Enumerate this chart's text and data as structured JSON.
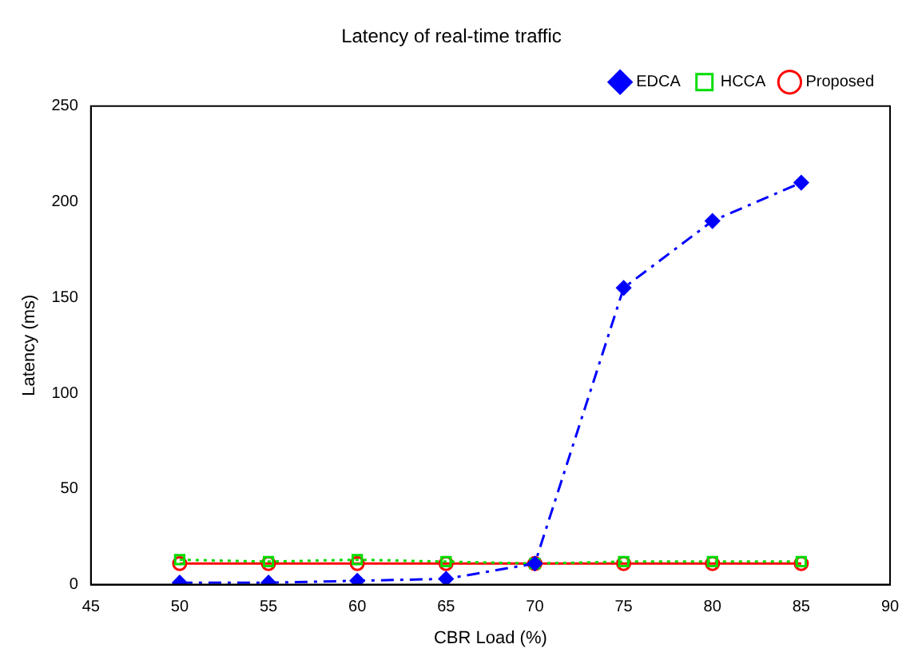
{
  "chart_data": {
    "type": "line",
    "title": "Latency of real-time traffic",
    "xlabel": "CBR Load (%)",
    "ylabel": "Latency (ms)",
    "x": [
      50,
      55,
      60,
      65,
      70,
      75,
      80,
      85
    ],
    "series": [
      {
        "name": "Proposed",
        "color": "#ff0000",
        "values": [
          11,
          11,
          11,
          11,
          11,
          11,
          11,
          11
        ],
        "marker": "circle",
        "line_style": "solid"
      },
      {
        "name": "HCCA",
        "color": "#00dd00",
        "values": [
          13,
          12,
          13,
          12,
          11,
          12,
          12,
          12
        ],
        "marker": "square",
        "line_style": "dotted"
      },
      {
        "name": "EDCA",
        "color": "#0000ff",
        "values": [
          1,
          1,
          2,
          3,
          11,
          155,
          190,
          210
        ],
        "marker": "diamond",
        "line_style": "dashed"
      }
    ],
    "xlim": [
      45,
      90
    ],
    "xticks": [
      45,
      50,
      55,
      60,
      65,
      70,
      75,
      80,
      85,
      90
    ],
    "ylim": [
      0,
      250
    ],
    "yticks": [
      0,
      50,
      100,
      150,
      200,
      250
    ],
    "grid": false,
    "legend": "top right"
  }
}
